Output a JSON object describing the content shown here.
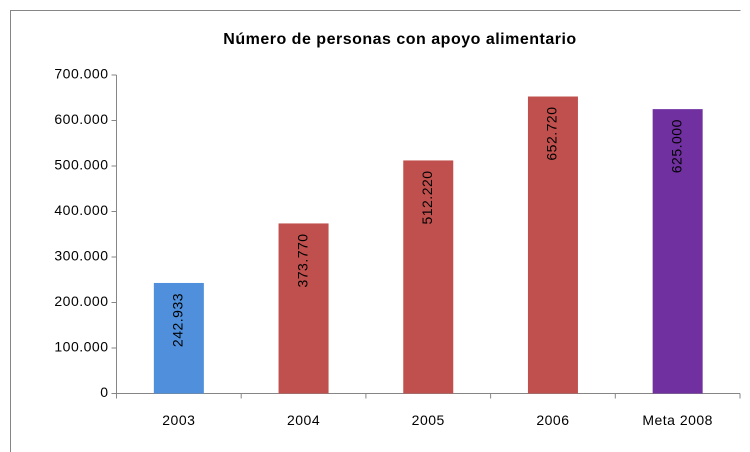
{
  "chart_data": {
    "type": "bar",
    "title": "Número de personas con apoyo alimentario",
    "categories": [
      "2003",
      "2004",
      "2005",
      "2006",
      "Meta 2008"
    ],
    "values": [
      242933,
      373770,
      512220,
      652720,
      625000
    ],
    "value_labels": [
      "242.933",
      "373.770",
      "512.220",
      "652.720",
      "625.000"
    ],
    "colors": [
      "#4f8fdb",
      "#c0504d",
      "#c0504d",
      "#c0504d",
      "#7030a0"
    ],
    "ylim": [
      0,
      700000
    ],
    "yticks": [
      0,
      {
        "value": 100000,
        "label": "100.000"
      },
      {
        "value": 200000,
        "label": "200.000"
      },
      {
        "value": 300000,
        "label": "300.000"
      },
      {
        "value": 400000,
        "label": "400.000"
      },
      {
        "value": 500000,
        "label": "500.000"
      },
      {
        "value": 600000,
        "label": "600.000"
      },
      {
        "value": 700000,
        "label": "700.000"
      }
    ]
  }
}
